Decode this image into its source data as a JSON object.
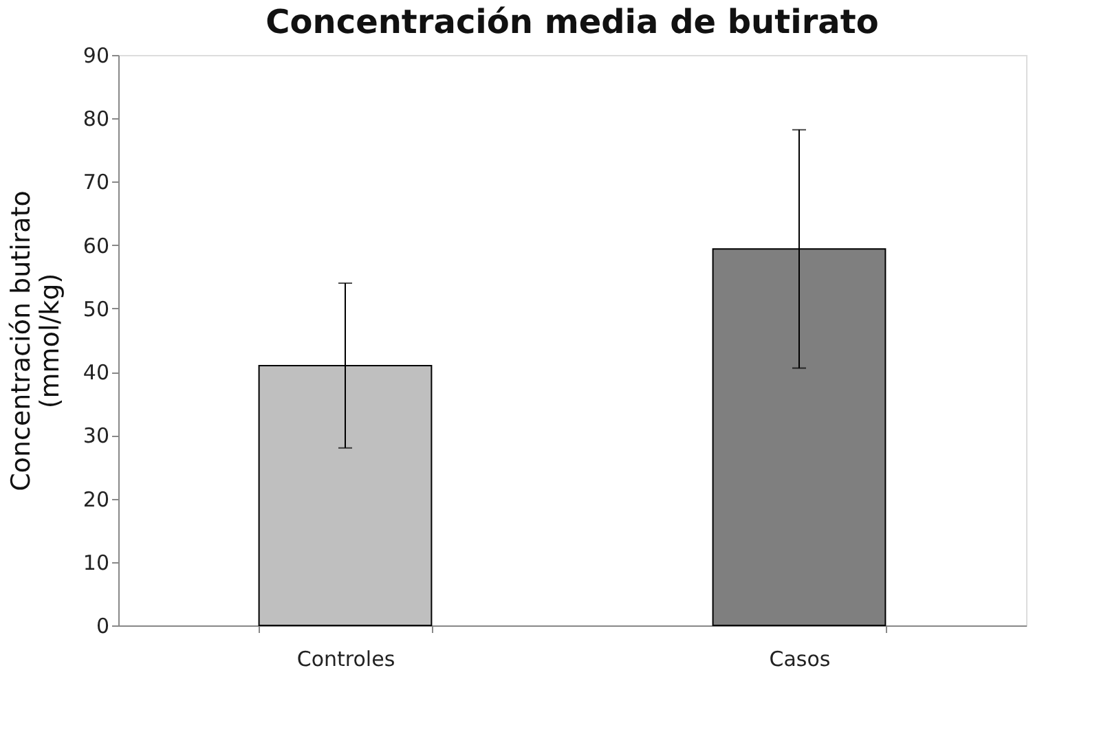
{
  "chart_data": {
    "type": "bar",
    "title": "Concentración media de butirato",
    "ylabel": "Concentración butirato\n(mmol/kg)",
    "categories": [
      "Controles",
      "Casos"
    ],
    "values": [
      41,
      59.4
    ],
    "colors": [
      "#bfbfbf",
      "#7f7f7f"
    ],
    "errors": [
      13,
      18.8
    ],
    "ylim": [
      0,
      90
    ],
    "yticks": [
      0,
      10,
      20,
      30,
      40,
      50,
      60,
      70,
      80,
      90
    ],
    "grid": false
  }
}
